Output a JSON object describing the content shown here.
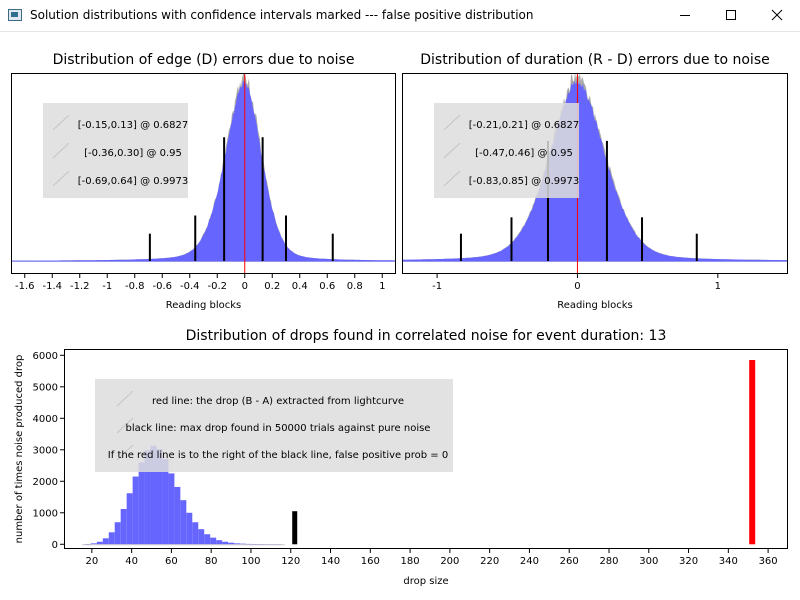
{
  "window": {
    "title": "Solution distributions with confidence intervals marked --- false positive distribution",
    "icon": "app-window-icon",
    "buttons": [
      "minimize-icon",
      "maximize-icon",
      "close-icon"
    ]
  },
  "colors": {
    "histogram_fill": "#6666ff",
    "histogram_noise": "#aaaaaa",
    "marker_red": "#ff0000",
    "bar_black": "#000000",
    "legend_bg": "#dddddd"
  },
  "chart_data": [
    {
      "type": "histogram",
      "title": "Distribution of edge (D) errors due to noise",
      "xlabel": "Reading blocks",
      "ylabel": "",
      "xlim": [
        -1.7,
        1.1
      ],
      "xticks": [
        "-1.6",
        "-1.4",
        "-1.2",
        "-1",
        "-0.8",
        "-0.6",
        "-0.4",
        "-0.2",
        "0",
        "0.2",
        "0.4",
        "0.6",
        "0.8",
        "1"
      ],
      "xtick_values": [
        -1.6,
        -1.4,
        -1.2,
        -1,
        -0.8,
        -0.6,
        -0.4,
        -0.2,
        0,
        0.2,
        0.4,
        0.6,
        0.8,
        1
      ],
      "distribution": {
        "center": 0.0,
        "sigma_left": 0.15,
        "sigma_right": 0.13
      },
      "red_line_x": 0.0,
      "confidence_intervals": [
        {
          "label": "[-0.15,0.13] @ 0.6827",
          "low": -0.15,
          "high": 0.13,
          "height": 0.68
        },
        {
          "label": "[-0.36,0.30] @ 0.95",
          "low": -0.36,
          "high": 0.3,
          "height": 0.25
        },
        {
          "label": "[-0.69,0.64] @ 0.9973",
          "low": -0.69,
          "high": 0.64,
          "height": 0.15
        }
      ],
      "legend": {
        "position": "top-left",
        "entries": [
          "[-0.15,0.13] @ 0.6827",
          "[-0.36,0.30] @ 0.95",
          "[-0.69,0.64] @ 0.9973"
        ]
      }
    },
    {
      "type": "histogram",
      "title": "Distribution of duration (R - D) errors due to noise",
      "xlabel": "Reading blocks",
      "ylabel": "",
      "xlim": [
        -1.25,
        1.5
      ],
      "xticks": [
        "-1",
        "0",
        "1"
      ],
      "xtick_values": [
        -1,
        0,
        1
      ],
      "distribution": {
        "center": 0.0,
        "sigma_left": 0.21,
        "sigma_right": 0.21
      },
      "red_line_x": 0.0,
      "confidence_intervals": [
        {
          "label": "[-0.21,0.21] @ 0.6827",
          "low": -0.21,
          "high": 0.21,
          "height": 0.66
        },
        {
          "label": "[-0.47,0.46] @ 0.95",
          "low": -0.47,
          "high": 0.46,
          "height": 0.24
        },
        {
          "label": "[-0.83,0.85] @ 0.9973",
          "low": -0.83,
          "high": 0.85,
          "height": 0.15
        }
      ],
      "legend": {
        "position": "top-left",
        "entries": [
          "[-0.21,0.21] @ 0.6827",
          "[-0.47,0.46] @ 0.95",
          "[-0.83,0.85] @ 0.9973"
        ]
      }
    },
    {
      "type": "histogram",
      "title": "Distribution of drops found in correlated noise for event duration: 13",
      "xlabel": "drop size",
      "ylabel": "number of times noise produced drop",
      "xlim": [
        6,
        370
      ],
      "ylim": [
        -150,
        6200
      ],
      "xticks": [
        "20",
        "40",
        "60",
        "80",
        "100",
        "120",
        "140",
        "160",
        "180",
        "200",
        "220",
        "240",
        "260",
        "280",
        "300",
        "320",
        "340",
        "360"
      ],
      "xtick_values": [
        20,
        40,
        60,
        80,
        100,
        120,
        140,
        160,
        180,
        200,
        220,
        240,
        260,
        280,
        300,
        320,
        340,
        360
      ],
      "yticks": [
        "0",
        "1000",
        "2000",
        "3000",
        "4000",
        "5000",
        "6000"
      ],
      "ytick_values": [
        0,
        1000,
        2000,
        3000,
        4000,
        5000,
        6000
      ],
      "bin_width": 3,
      "bins": [
        {
          "x": 15,
          "count": 0
        },
        {
          "x": 18,
          "count": 10
        },
        {
          "x": 21,
          "count": 30
        },
        {
          "x": 24,
          "count": 80
        },
        {
          "x": 27,
          "count": 190
        },
        {
          "x": 30,
          "count": 380
        },
        {
          "x": 33,
          "count": 700
        },
        {
          "x": 36,
          "count": 1120
        },
        {
          "x": 39,
          "count": 1620
        },
        {
          "x": 42,
          "count": 2150
        },
        {
          "x": 45,
          "count": 2600
        },
        {
          "x": 48,
          "count": 2980
        },
        {
          "x": 51,
          "count": 3130
        },
        {
          "x": 54,
          "count": 3020
        },
        {
          "x": 57,
          "count": 2700
        },
        {
          "x": 60,
          "count": 2250
        },
        {
          "x": 63,
          "count": 1820
        },
        {
          "x": 66,
          "count": 1400
        },
        {
          "x": 69,
          "count": 1000
        },
        {
          "x": 72,
          "count": 700
        },
        {
          "x": 75,
          "count": 480
        },
        {
          "x": 78,
          "count": 320
        },
        {
          "x": 81,
          "count": 210
        },
        {
          "x": 84,
          "count": 130
        },
        {
          "x": 87,
          "count": 80
        },
        {
          "x": 90,
          "count": 50
        },
        {
          "x": 93,
          "count": 30
        },
        {
          "x": 96,
          "count": 20
        },
        {
          "x": 99,
          "count": 12
        },
        {
          "x": 102,
          "count": 8
        },
        {
          "x": 105,
          "count": 5
        },
        {
          "x": 108,
          "count": 3
        },
        {
          "x": 111,
          "count": 2
        },
        {
          "x": 114,
          "count": 1
        },
        {
          "x": 117,
          "count": 0
        }
      ],
      "black_line": {
        "x": 122,
        "height": 1050
      },
      "red_line": {
        "x": 352,
        "height": 5850
      },
      "legend": {
        "position": "top-left",
        "entries": [
          "red line: the drop (B - A) extracted from lightcurve",
          "black line: max drop found in 50000 trials against pure noise",
          "If the red line is to the right of the black line, false positive prob = 0"
        ]
      }
    }
  ]
}
